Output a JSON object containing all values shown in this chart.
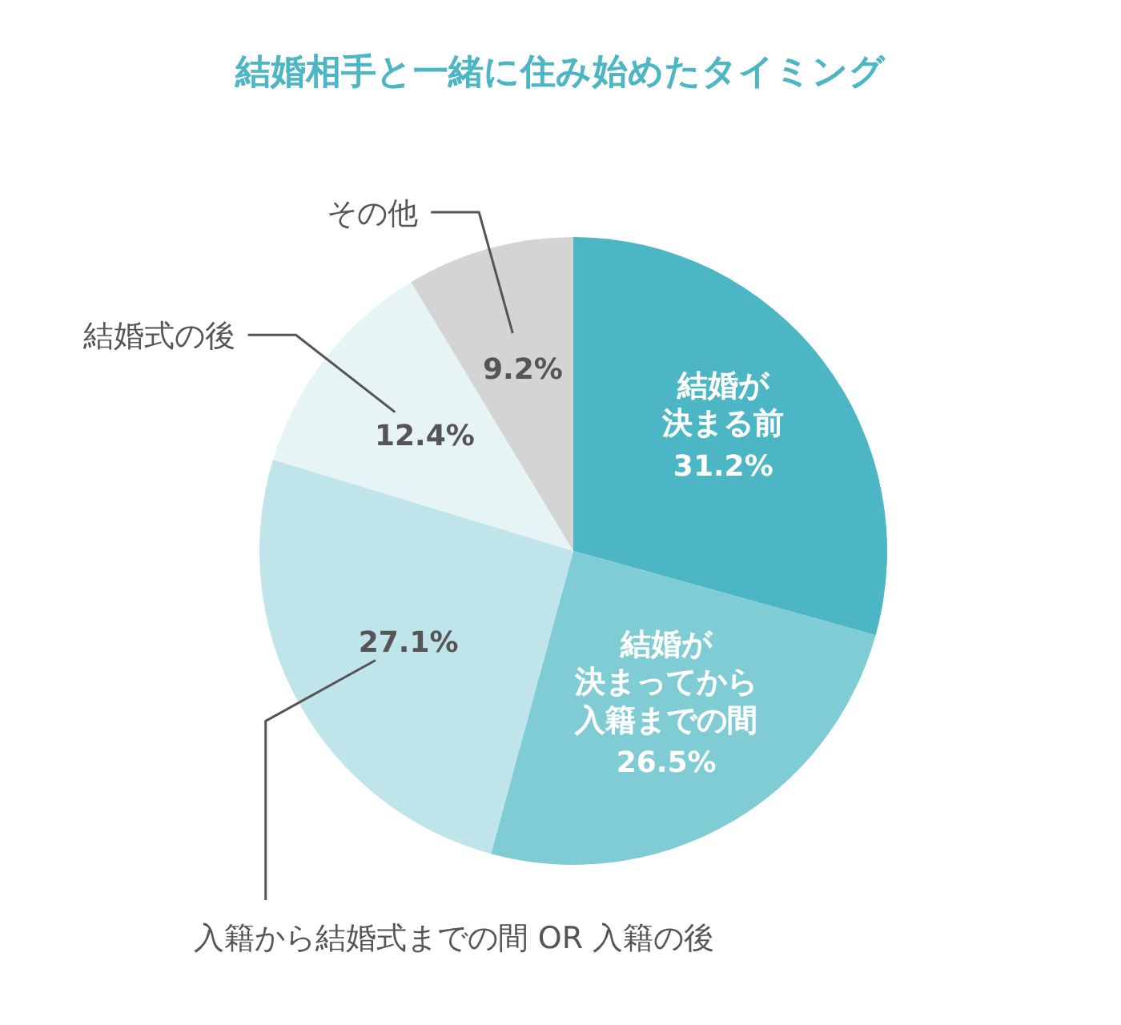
{
  "chart_data": {
    "type": "pie",
    "title": "結婚相手と一緒に住み始めたタイミング",
    "categories": [
      "結婚が決まる前",
      "結婚が決まってから入籍までの間",
      "入籍から結婚式までの間 OR 入籍の後",
      "結婚式の後",
      "その他"
    ],
    "values": [
      31.2,
      26.5,
      27.1,
      12.4,
      9.2
    ],
    "value_labels": [
      "31.2%",
      "26.5%",
      "27.1%",
      "12.4%",
      "9.2%"
    ],
    "colors": [
      "#4db6c4",
      "#80ccd4",
      "#bfe5ea",
      "#e6f4f6",
      "#d4d4d4"
    ]
  }
}
